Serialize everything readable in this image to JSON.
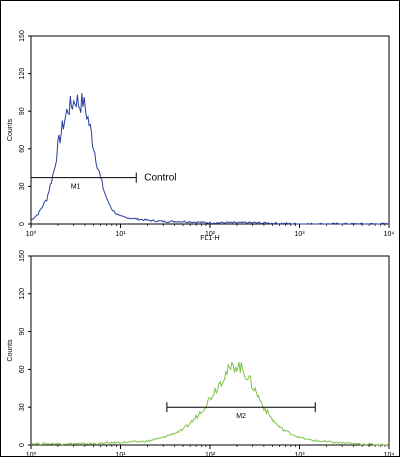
{
  "chart_data": [
    {
      "type": "line",
      "xscale": "log",
      "xlim": [
        1,
        10000
      ],
      "ylim": [
        0,
        150
      ],
      "x_ticks": [
        "10⁰",
        "10¹",
        "10²",
        "10³",
        "10⁴"
      ],
      "y_ticks": [
        "0",
        "30",
        "60",
        "90",
        "120",
        "150"
      ],
      "xlabel": "FL1-H",
      "ylabel": "Counts",
      "color": "#2b3f9e",
      "series": [
        {
          "x": [
            1,
            1.2,
            1.5,
            1.8,
            2.0,
            2.3,
            2.6,
            2.9,
            3.2,
            3.5,
            3.8,
            4.2,
            4.6,
            5.0,
            5.5,
            6.0,
            6.6,
            7.2,
            8.0,
            9.0,
            10,
            12,
            15,
            20,
            30,
            50,
            100,
            300,
            1000,
            10000
          ],
          "y": [
            3,
            8,
            20,
            42,
            62,
            80,
            92,
            96,
            100,
            95,
            98,
            88,
            76,
            62,
            48,
            36,
            26,
            18,
            12,
            8,
            6,
            5,
            4,
            3,
            2,
            2,
            1,
            1,
            0,
            0
          ]
        }
      ],
      "gate": {
        "label": "M1",
        "x_start": 1,
        "x_end": 15,
        "y": 37
      },
      "annotation": "Control"
    },
    {
      "type": "line",
      "xscale": "log",
      "xlim": [
        1,
        10000
      ],
      "ylim": [
        0,
        150
      ],
      "x_ticks": [
        "10⁰",
        "10¹",
        "10²",
        "10³",
        "10⁴"
      ],
      "y_ticks": [
        "0",
        "30",
        "60",
        "90",
        "120",
        "150"
      ],
      "xlabel": "",
      "ylabel": "Counts",
      "color": "#7ec24a",
      "series": [
        {
          "x": [
            1,
            2,
            5,
            10,
            20,
            30,
            50,
            70,
            90,
            110,
            130,
            150,
            170,
            200,
            230,
            260,
            300,
            350,
            400,
            500,
            600,
            800,
            1000,
            1300,
            1700,
            2500,
            4000,
            10000
          ],
          "y": [
            1,
            1,
            1,
            2,
            3,
            6,
            12,
            22,
            32,
            42,
            50,
            57,
            60,
            64,
            60,
            55,
            47,
            38,
            30,
            20,
            14,
            9,
            6,
            4,
            3,
            2,
            1,
            0
          ]
        }
      ],
      "gate": {
        "label": "M2",
        "x_start": 33,
        "x_end": 1500,
        "y": 30
      }
    }
  ]
}
